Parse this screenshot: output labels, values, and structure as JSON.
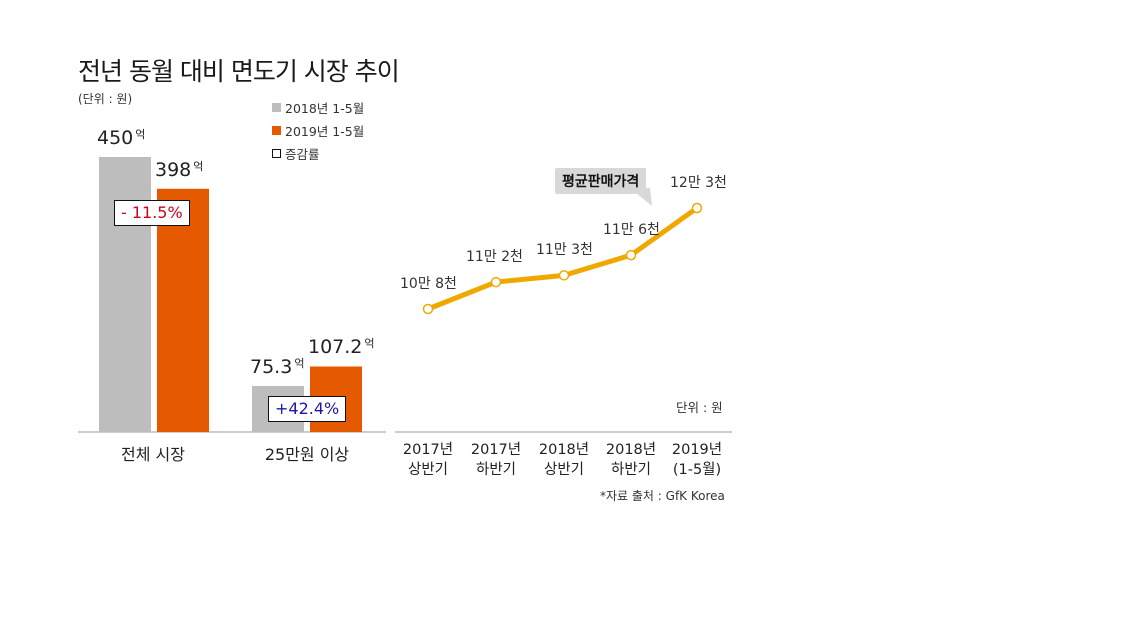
{
  "title": "전년 동월 대비 면도기 시장 추이",
  "unit_left": "(단위 : 원)",
  "legend": [
    {
      "label": "2018년 1-5월",
      "color": "#bdbdbd",
      "kind": "filled"
    },
    {
      "label": "2019년 1-5월",
      "color": "#e55a00",
      "kind": "filled"
    },
    {
      "label": "증감률",
      "color": "#111111",
      "kind": "outline"
    }
  ],
  "colors": {
    "series_2018": "#bdbdbd",
    "series_2019": "#e55a00",
    "line": "#f0a800",
    "negative": "#d0021b",
    "positive": "#1a1aa8"
  },
  "chart_data": [
    {
      "type": "bar",
      "title": "전년 동월 대비 면도기 시장 추이",
      "unit": "억",
      "categories": [
        "전체 시장",
        "25만원 이상"
      ],
      "series": [
        {
          "name": "2018년 1-5월",
          "values": [
            450,
            75.3
          ],
          "labels": [
            "450",
            "75.3"
          ]
        },
        {
          "name": "2019년 1-5월",
          "values": [
            398,
            107.2
          ],
          "labels": [
            "398",
            "107.2"
          ]
        }
      ],
      "change_labels": [
        "- 11.5%",
        "+42.4%"
      ],
      "ylim": [
        0,
        450
      ]
    },
    {
      "type": "line",
      "callout": "평균판매가격",
      "unit": "단위 : 원",
      "x": [
        "2017년|상반기",
        "2017년|하반기",
        "2018년|상반기",
        "2018년|하반기",
        "2019년|(1-5월)"
      ],
      "values": [
        108000,
        112000,
        113000,
        116000,
        123000
      ],
      "point_labels": [
        "10만 8천",
        "11만 2천",
        "11만 3천",
        "11만 6천",
        "12만 3천"
      ],
      "source": "*자료 출처 : GfK Korea"
    }
  ]
}
